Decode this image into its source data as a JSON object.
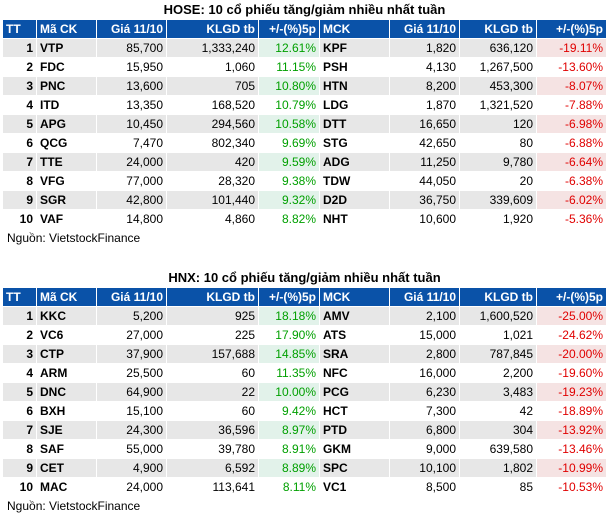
{
  "headers": [
    "TT",
    "Mã CK",
    "Giá 11/10",
    "KLGD tb",
    "+/-(%)5p",
    "MCK",
    "Giá 11/10",
    "KLGD tb",
    "+/-(%)5p"
  ],
  "hose": {
    "title": "HOSE: 10 cổ phiếu tăng/giảm nhiều nhất tuần",
    "source": "Nguồn: VietstockFinance",
    "rows": [
      {
        "tt": "1",
        "up_code": "VTP",
        "up_price": "85,700",
        "up_vol": "1,333,240",
        "up_pct": "12.61%",
        "down_code": "KPF",
        "down_price": "1,820",
        "down_vol": "636,120",
        "down_pct": "-19.11%"
      },
      {
        "tt": "2",
        "up_code": "FDC",
        "up_price": "15,950",
        "up_vol": "1,060",
        "up_pct": "11.15%",
        "down_code": "PSH",
        "down_price": "4,130",
        "down_vol": "1,267,500",
        "down_pct": "-13.60%"
      },
      {
        "tt": "3",
        "up_code": "PNC",
        "up_price": "13,600",
        "up_vol": "705",
        "up_pct": "10.80%",
        "down_code": "HTN",
        "down_price": "8,200",
        "down_vol": "453,300",
        "down_pct": "-8.07%"
      },
      {
        "tt": "4",
        "up_code": "ITD",
        "up_price": "13,350",
        "up_vol": "168,520",
        "up_pct": "10.79%",
        "down_code": "LDG",
        "down_price": "1,870",
        "down_vol": "1,321,520",
        "down_pct": "-7.88%"
      },
      {
        "tt": "5",
        "up_code": "APG",
        "up_price": "10,450",
        "up_vol": "294,560",
        "up_pct": "10.58%",
        "down_code": "DTT",
        "down_price": "16,650",
        "down_vol": "120",
        "down_pct": "-6.98%"
      },
      {
        "tt": "6",
        "up_code": "QCG",
        "up_price": "7,470",
        "up_vol": "802,340",
        "up_pct": "9.69%",
        "down_code": "STG",
        "down_price": "42,650",
        "down_vol": "80",
        "down_pct": "-6.88%"
      },
      {
        "tt": "7",
        "up_code": "TTE",
        "up_price": "24,000",
        "up_vol": "420",
        "up_pct": "9.59%",
        "down_code": "ADG",
        "down_price": "11,250",
        "down_vol": "9,780",
        "down_pct": "-6.64%"
      },
      {
        "tt": "8",
        "up_code": "VFG",
        "up_price": "77,000",
        "up_vol": "28,320",
        "up_pct": "9.38%",
        "down_code": "TDW",
        "down_price": "44,050",
        "down_vol": "20",
        "down_pct": "-6.38%"
      },
      {
        "tt": "9",
        "up_code": "SGR",
        "up_price": "42,800",
        "up_vol": "101,440",
        "up_pct": "9.32%",
        "down_code": "D2D",
        "down_price": "36,750",
        "down_vol": "339,609",
        "down_pct": "-6.02%"
      },
      {
        "tt": "10",
        "up_code": "VAF",
        "up_price": "14,800",
        "up_vol": "4,860",
        "up_pct": "8.82%",
        "down_code": "NHT",
        "down_price": "10,600",
        "down_vol": "1,920",
        "down_pct": "-5.36%"
      }
    ]
  },
  "hnx": {
    "title": "HNX: 10 cổ phiếu tăng/giảm nhiều nhất tuần",
    "source": "Nguồn: VietstockFinance",
    "rows": [
      {
        "tt": "1",
        "up_code": "KKC",
        "up_price": "5,200",
        "up_vol": "925",
        "up_pct": "18.18%",
        "down_code": "AMV",
        "down_price": "2,100",
        "down_vol": "1,600,520",
        "down_pct": "-25.00%"
      },
      {
        "tt": "2",
        "up_code": "VC6",
        "up_price": "27,000",
        "up_vol": "225",
        "up_pct": "17.90%",
        "down_code": "ATS",
        "down_price": "15,000",
        "down_vol": "1,021",
        "down_pct": "-24.62%"
      },
      {
        "tt": "3",
        "up_code": "CTP",
        "up_price": "37,900",
        "up_vol": "157,688",
        "up_pct": "14.85%",
        "down_code": "SRA",
        "down_price": "2,800",
        "down_vol": "787,845",
        "down_pct": "-20.00%"
      },
      {
        "tt": "4",
        "up_code": "ARM",
        "up_price": "25,500",
        "up_vol": "60",
        "up_pct": "11.35%",
        "down_code": "NFC",
        "down_price": "16,000",
        "down_vol": "2,200",
        "down_pct": "-19.60%"
      },
      {
        "tt": "5",
        "up_code": "DNC",
        "up_price": "64,900",
        "up_vol": "22",
        "up_pct": "10.00%",
        "down_code": "PCG",
        "down_price": "6,230",
        "down_vol": "3,483",
        "down_pct": "-19.23%"
      },
      {
        "tt": "6",
        "up_code": "BXH",
        "up_price": "15,100",
        "up_vol": "60",
        "up_pct": "9.42%",
        "down_code": "HCT",
        "down_price": "7,300",
        "down_vol": "42",
        "down_pct": "-18.89%"
      },
      {
        "tt": "7",
        "up_code": "SJE",
        "up_price": "24,300",
        "up_vol": "36,596",
        "up_pct": "8.97%",
        "down_code": "PTD",
        "down_price": "6,800",
        "down_vol": "304",
        "down_pct": "-13.92%"
      },
      {
        "tt": "8",
        "up_code": "SAF",
        "up_price": "55,000",
        "up_vol": "39,780",
        "up_pct": "8.91%",
        "down_code": "GKM",
        "down_price": "9,000",
        "down_vol": "639,580",
        "down_pct": "-13.46%"
      },
      {
        "tt": "9",
        "up_code": "CET",
        "up_price": "4,900",
        "up_vol": "6,592",
        "up_pct": "8.89%",
        "down_code": "SPC",
        "down_price": "10,100",
        "down_vol": "1,802",
        "down_pct": "-10.99%"
      },
      {
        "tt": "10",
        "up_code": "MAC",
        "up_price": "24,000",
        "up_vol": "113,641",
        "up_pct": "8.11%",
        "down_code": "VC1",
        "down_price": "8,500",
        "down_vol": "85",
        "down_pct": "-10.53%"
      }
    ]
  }
}
